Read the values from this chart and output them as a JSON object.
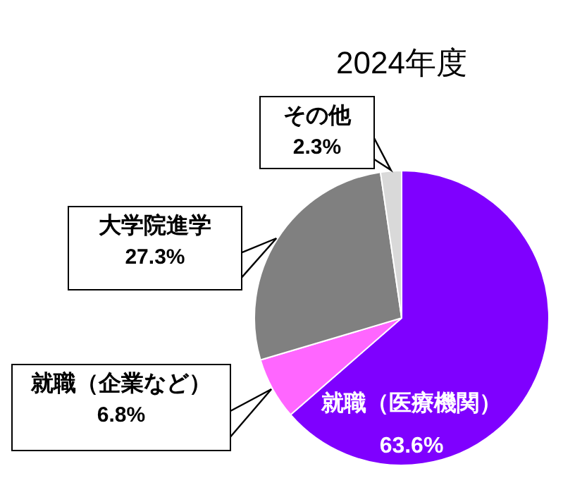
{
  "chart_data": {
    "type": "pie",
    "title": "2024年度",
    "categories": [
      "就職（医療機関）",
      "就職（企業など）",
      "大学院進学",
      "その他"
    ],
    "values": [
      63.6,
      6.8,
      27.3,
      2.3
    ],
    "colors": [
      "#7f00ff",
      "#ff66ff",
      "#808080",
      "#d9d9d9"
    ],
    "value_labels": [
      "63.6%",
      "6.8%",
      "27.3%",
      "2.3%"
    ],
    "legend": false
  }
}
